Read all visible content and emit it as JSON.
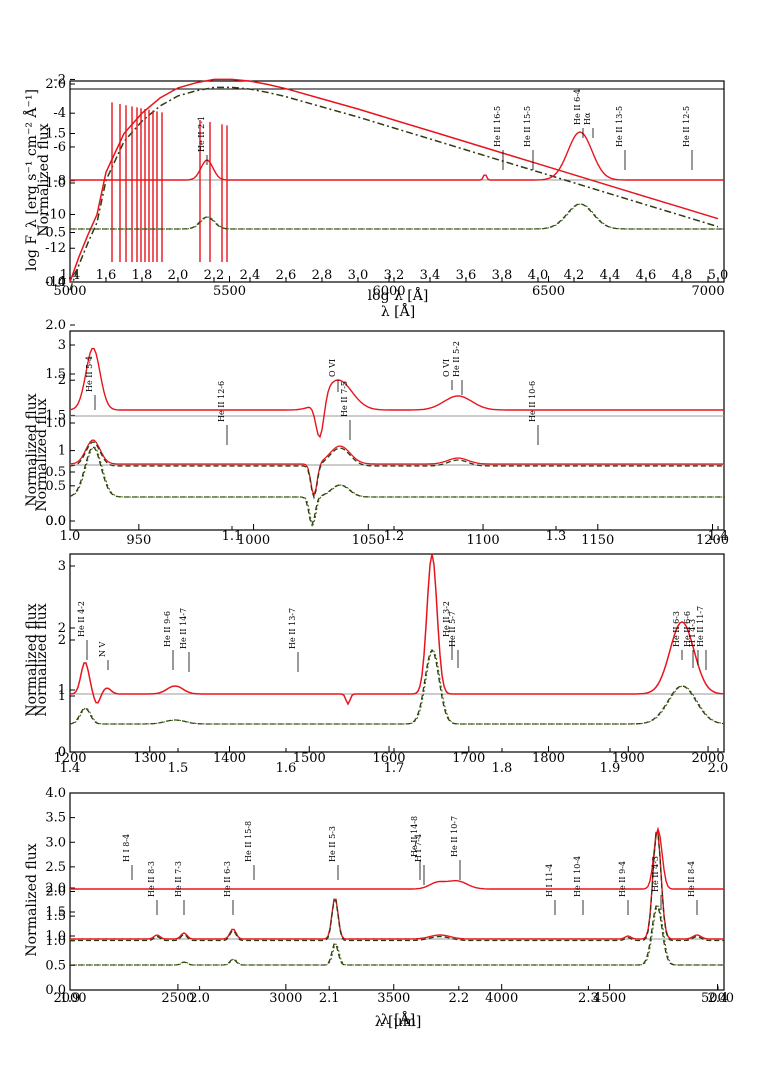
{
  "colors": {
    "model_line": "#e8141c",
    "model_dashed": "#2f3a12",
    "model_dotted": "#3a6a10",
    "frame": "#000000",
    "reference": "#9a9a9a"
  },
  "chart_data": [
    {
      "type": "line",
      "panel": "top",
      "xlabel": "λ [Å]",
      "ylabel": "log F_λ [erg s⁻¹ cm⁻² Å⁻¹]",
      "xlim": [
        5000,
        7050
      ],
      "ylim": [
        -14,
        -1.5
      ],
      "x_ticks": [
        5000,
        5500,
        6000,
        6500,
        7000
      ],
      "y_ticks": [
        -2,
        -4,
        -6,
        -8,
        -10,
        -12,
        -14
      ],
      "secondary": {
        "xlabel": "log λ [Å]",
        "ylabel": "Normalized flux",
        "x_ticks": [
          "1.4",
          "1.6",
          "1.8",
          "2.0",
          "2.2",
          "2.4",
          "2.6",
          "2.8",
          "3.0",
          "3.2",
          "3.4",
          "3.6",
          "3.8",
          "4.0",
          "4.2",
          "4.4",
          "4.6",
          "4.8",
          "5.0"
        ],
        "y_ticks": [
          "2.0",
          "1.5",
          "1.0",
          "0.5",
          "0.0"
        ]
      },
      "sed_model": {
        "log_lambda": [
          1.4,
          1.45,
          1.5,
          1.55,
          1.6,
          1.7,
          1.8,
          1.9,
          2.0,
          2.1,
          2.2,
          2.3,
          2.4,
          2.5,
          2.6,
          2.8,
          3.0,
          3.2,
          3.4,
          3.6,
          3.8,
          4.0,
          4.2,
          4.4,
          4.6,
          4.8,
          5.0
        ],
        "log_flux": [
          -14,
          -12.5,
          -11.2,
          -10.0,
          -7.5,
          -5.2,
          -4.0,
          -3.1,
          -2.5,
          -2.2,
          -2.0,
          -2.0,
          -2.1,
          -2.3,
          -2.55,
          -3.15,
          -3.75,
          -4.4,
          -5.05,
          -5.7,
          -6.35,
          -7.0,
          -7.65,
          -8.3,
          -8.95,
          -9.6,
          -10.25
        ]
      },
      "line_labels": [
        "He II 2-1",
        "He II 16-5",
        "He II 15-5",
        "He II 6-4",
        "Hα",
        "He II 13-5",
        "He II 12-5"
      ]
    },
    {
      "type": "line",
      "panel": "second",
      "xlabel": "",
      "ylabel": "Normalized flux",
      "xlim": [
        920,
        1205
      ],
      "ylim": [
        0.0,
        3.1
      ],
      "x_ticks": [
        950,
        1000,
        1050,
        1100,
        1150,
        1200
      ],
      "y_ticks": [
        "0.0",
        "0.5",
        "1",
        "1.5",
        "2",
        "3"
      ],
      "secondary": {
        "ylabel": "Normalized flux",
        "x_ticks": [
          "1.0",
          "1.1",
          "1.2",
          "1.3",
          "1.4"
        ],
        "y_ticks": [
          "2.0",
          "1.5",
          "1.0",
          "0.5",
          "0.0"
        ]
      },
      "line_labels": [
        "He II 5-4",
        "He II 12-6",
        "O VI",
        "He II 7-5",
        "O VI",
        "He II 5-2",
        "He II 10-6"
      ]
    },
    {
      "type": "line",
      "panel": "third",
      "xlabel": "",
      "ylabel": "Normalized flux",
      "xlim": [
        1200,
        2020
      ],
      "ylim": [
        0,
        3.2
      ],
      "x_ticks": [
        1200,
        1300,
        1400,
        1500,
        1600,
        1700,
        1800,
        1900,
        2000
      ],
      "y_ticks": [
        "0",
        "1",
        "2",
        "3"
      ],
      "secondary": {
        "ylabel": "Normalized flux",
        "x_ticks": [
          "1.4",
          "1.5",
          "1.6",
          "1.7",
          "1.8",
          "1.9",
          "2.0"
        ],
        "y_ticks": [
          "2",
          "1",
          "0"
        ]
      },
      "line_labels": [
        "He II 4-2",
        "N V",
        "He II 9-6",
        "He II 14-7",
        "He II 13-7",
        "He II 3-2",
        "He II 5-7",
        "He II 6-3",
        "He II 6-6",
        "H I 4-3",
        "He II 11-7"
      ]
    },
    {
      "type": "line",
      "panel": "bottom",
      "xlabel": "λ [Å]",
      "ylabel": "Normalized flux",
      "xlim": [
        2000,
        5030
      ],
      "ylim": [
        0.0,
        4.0
      ],
      "x_ticks": [
        2000,
        2500,
        3000,
        3500,
        4000,
        4500,
        5000
      ],
      "y_ticks": [
        "0.0",
        "0.5",
        "1.0",
        "1.5",
        "2.0",
        "2.5",
        "3.0",
        "3.5",
        "4.0"
      ],
      "secondary": {
        "xlabel": "λ [μm]",
        "x_ticks": [
          "1.9",
          "2.0",
          "2.1",
          "2.2",
          "2.3",
          "2.4"
        ],
        "y_ticks": [
          "2.0",
          "1.5",
          "1.0"
        ]
      },
      "line_labels": [
        "H I 8-4",
        "He II 8-3",
        "He II 7-3",
        "He II 6-3",
        "He II 15-8",
        "He II 5-3",
        "He II 14-8",
        "H I 7-4",
        "He II 10-7",
        "H I 11-4",
        "He II 10-4",
        "He II 9-4",
        "He II 4-3",
        "He II 8-4"
      ]
    }
  ]
}
